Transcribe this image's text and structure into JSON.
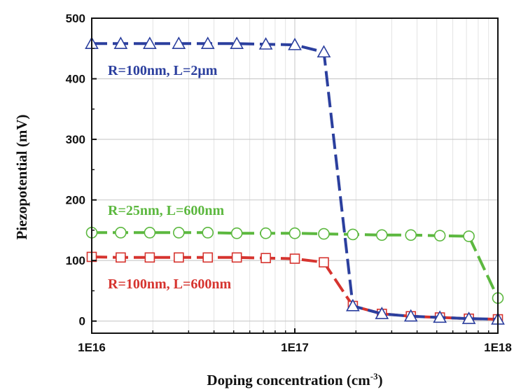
{
  "chart_data": {
    "type": "line",
    "xscale": "log",
    "xlim": [
      1e+16,
      1e+18
    ],
    "ylim": [
      -20,
      500
    ],
    "xticks": [
      {
        "value": 1e+16,
        "label": "1E16"
      },
      {
        "value": 1e+17,
        "label": "1E17"
      },
      {
        "value": 1e+18,
        "label": "1E18"
      }
    ],
    "yticks": [
      0,
      100,
      200,
      300,
      400,
      500
    ],
    "xlabel": "Doping concentration (cm",
    "xlabel_sup": "-3",
    "xlabel_tail": ")",
    "ylabel": "Piezopotential (mV)",
    "grid": true,
    "series": [
      {
        "name": "R=100nm, L=2μm",
        "color": "#2b3f9e",
        "marker": "triangle",
        "line_style": "dashed",
        "x": [
          1e+16,
          1.389e+16,
          1.931e+16,
          2.683e+16,
          3.728e+16,
          5.18e+16,
          7.197e+16,
          1e+17,
          1.39e+17,
          1.931e+17,
          2.683e+17,
          3.728e+17,
          5.18e+17,
          7.197e+17,
          1e+18
        ],
        "values": [
          458,
          458,
          458,
          458,
          458,
          458,
          457,
          456,
          444,
          25,
          12,
          8,
          6,
          4,
          3
        ],
        "annotation": "R=100nm, L=2μm"
      },
      {
        "name": "R=25nm, L=600nm",
        "color": "#5cb83f",
        "marker": "circle",
        "line_style": "dashed",
        "x": [
          1e+16,
          1.389e+16,
          1.931e+16,
          2.683e+16,
          3.728e+16,
          5.18e+16,
          7.197e+16,
          1e+17,
          1.39e+17,
          1.931e+17,
          2.683e+17,
          3.728e+17,
          5.18e+17,
          7.197e+17,
          1e+18
        ],
        "values": [
          146,
          146,
          146,
          146,
          146,
          145,
          145,
          145,
          144,
          143,
          142,
          142,
          141,
          140,
          38
        ],
        "annotation": "R=25nm, L=600nm"
      },
      {
        "name": "R=100nm, L=600nm",
        "color": "#d6342f",
        "marker": "square",
        "line_style": "dashed",
        "x": [
          1e+16,
          1.389e+16,
          1.931e+16,
          2.683e+16,
          3.728e+16,
          5.18e+16,
          7.197e+16,
          1e+17,
          1.39e+17,
          1.931e+17,
          2.683e+17,
          3.728e+17,
          5.18e+17,
          7.197e+17,
          1e+18
        ],
        "values": [
          106,
          105,
          105,
          105,
          105,
          105,
          104,
          103,
          97,
          25,
          12,
          8,
          6,
          4,
          3
        ],
        "annotation": "R=100nm, L=600nm"
      }
    ]
  }
}
